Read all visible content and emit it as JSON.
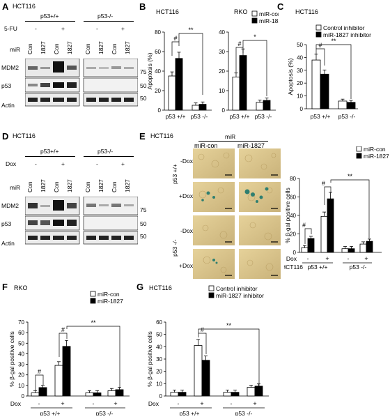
{
  "panels": {
    "A": "A",
    "B": "B",
    "C": "C",
    "D": "D",
    "E": "E",
    "F": "F",
    "G": "G"
  },
  "cells": {
    "hct": "HCT116",
    "rko": "RKO"
  },
  "wb": {
    "p53wt": "p53+/+",
    "p53ko": "p53-/-",
    "treat_a": "5-FU",
    "treat_d": "Dox",
    "minus": "-",
    "plus": "+",
    "mir": "miR",
    "con": "Con",
    "m1827": "1827",
    "kd": "kD",
    "rows": [
      "MDM2",
      "p53",
      "Actin"
    ],
    "mw": [
      "75",
      "50",
      "50"
    ]
  },
  "e_panel": {
    "mir": "miR",
    "col1": "miR-con",
    "col2": "miR-1827",
    "rowA": "p53 +/+",
    "rowB": "p53 -/-",
    "ndox": "-Dox",
    "pdox": "+Dox"
  },
  "axis": {
    "apop": "Apoptosis (%)",
    "bgal": "% β-gal positive cells",
    "wt": "p53 +/+",
    "ko": "p53 -/-",
    "dox": "Dox",
    "minus": "-",
    "plus": "+",
    "hash": "#",
    "sig1": "*",
    "sig2": "**"
  },
  "legends": {
    "mir_con": "miR-con",
    "mir_1827": "miR-1827",
    "ctrl_inh": "Control inhibitor",
    "mir_inh": "miR-1827 inhibitor"
  },
  "chart_data": [
    {
      "id": "B-HCT116",
      "type": "bar",
      "title": "HCT116",
      "ylabel": "Apoptosis (%)",
      "ylim": [
        0,
        80
      ],
      "categories": [
        "p53 +/+",
        "p53 -/-"
      ],
      "series": [
        {
          "name": "miR-con",
          "values": [
            35,
            5
          ]
        },
        {
          "name": "miR-1827",
          "values": [
            53,
            6
          ]
        }
      ]
    },
    {
      "id": "B-RKO",
      "type": "bar",
      "title": "RKO",
      "ylim": [
        0,
        40
      ],
      "categories": [
        "p53 +/+",
        "p53 -/-"
      ],
      "series": [
        {
          "name": "miR-con",
          "values": [
            17,
            4
          ]
        },
        {
          "name": "miR-1827",
          "values": [
            28,
            5
          ]
        }
      ]
    },
    {
      "id": "C",
      "type": "bar",
      "title": "HCT116",
      "ylabel": "Apoptosis (%)",
      "ylim": [
        0,
        50
      ],
      "categories": [
        "p53 +/+",
        "p53 -/-"
      ],
      "series": [
        {
          "name": "Control inhibitor",
          "values": [
            38,
            6
          ]
        },
        {
          "name": "miR-1827 inhibitor",
          "values": [
            27,
            5
          ]
        }
      ]
    },
    {
      "id": "E",
      "type": "bar",
      "ylabel": "% β-gal positive cells",
      "ylim": [
        0,
        80
      ],
      "categories": [
        "p53 +/+ Dox -",
        "p53 +/+ Dox +",
        "p53 -/- Dox -",
        "p53 -/- Dox +"
      ],
      "series": [
        {
          "name": "miR-con",
          "values": [
            5,
            39,
            4,
            9
          ]
        },
        {
          "name": "miR-1827",
          "values": [
            15,
            58,
            4,
            12
          ]
        }
      ]
    },
    {
      "id": "F",
      "type": "bar",
      "title": "RKO",
      "ylabel": "% β-gal positive cells",
      "ylim": [
        0,
        70
      ],
      "categories": [
        "p53 +/+ Dox -",
        "p53 +/+ Dox +",
        "p53 -/- Dox -",
        "p53 -/- Dox +"
      ],
      "series": [
        {
          "name": "miR-con",
          "values": [
            3,
            29,
            3,
            5
          ]
        },
        {
          "name": "miR-1827",
          "values": [
            8,
            47,
            3,
            6
          ]
        }
      ]
    },
    {
      "id": "G",
      "type": "bar",
      "title": "HCT116",
      "ylabel": "% β-gal positive cells",
      "ylim": [
        0,
        60
      ],
      "categories": [
        "p53 +/+ Dox -",
        "p53 +/+ Dox +",
        "p53 -/- Dox -",
        "p53 -/- Dox +"
      ],
      "series": [
        {
          "name": "Control inhibitor",
          "values": [
            3,
            41,
            3,
            7
          ]
        },
        {
          "name": "miR-1827 inhibitor",
          "values": [
            3,
            29,
            3,
            8
          ]
        }
      ]
    }
  ]
}
